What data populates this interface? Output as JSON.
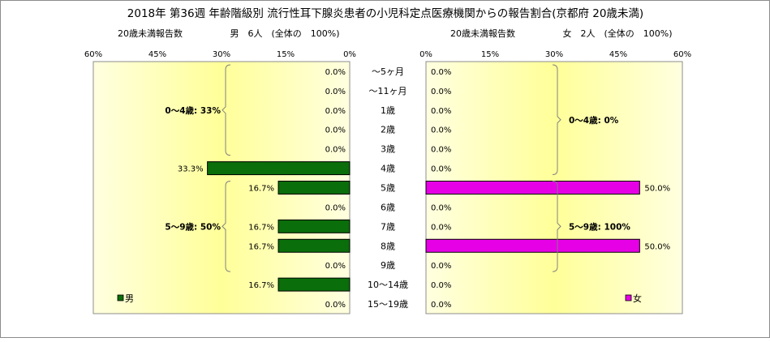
{
  "title": "2018年 第36週 年齢階級別 流行性耳下腺炎患者の小児科定点医療機関からの報告割合(京都府 20歳未満)",
  "colors": {
    "male_bar": "#0a6e0a",
    "female_bar": "#e600e6",
    "plot_gradient_edge": "#ffffe0",
    "plot_gradient_center": "#ffff99"
  },
  "chart_data": [
    {
      "type": "bar",
      "orientation": "horizontal",
      "direction": "right-to-left",
      "header_left": "20歳未満報告数",
      "header_right": "男　6人　(全体の　100%)",
      "categories": [
        "～5ヶ月",
        "～11ヶ月",
        "1歳",
        "2歳",
        "3歳",
        "4歳",
        "5歳",
        "6歳",
        "7歳",
        "8歳",
        "9歳",
        "10～14歳",
        "15～19歳"
      ],
      "values": [
        0.0,
        0.0,
        0.0,
        0.0,
        0.0,
        33.3,
        16.7,
        0.0,
        16.7,
        16.7,
        0.0,
        16.7,
        0.0
      ],
      "value_labels": [
        "0.0%",
        "0.0%",
        "0.0%",
        "0.0%",
        "0.0%",
        "33.3%",
        "16.7%",
        "0.0%",
        "16.7%",
        "16.7%",
        "0.0%",
        "16.7%",
        "0.0%"
      ],
      "xlim": [
        0,
        60
      ],
      "ticks": [
        "60%",
        "45%",
        "30%",
        "15%",
        "0%"
      ],
      "legend": "男",
      "legend_position": "bottom-left",
      "annotations": [
        {
          "text": "0～4歳: 33%",
          "from_category": 0,
          "to_category": 4
        },
        {
          "text": "5～9歳: 50%",
          "from_category": 6,
          "to_category": 10
        }
      ]
    },
    {
      "type": "bar",
      "orientation": "horizontal",
      "direction": "left-to-right",
      "header_left": "20歳未満報告数",
      "header_right": "女　2人　(全体の　100%)",
      "categories": [
        "～5ヶ月",
        "～11ヶ月",
        "1歳",
        "2歳",
        "3歳",
        "4歳",
        "5歳",
        "6歳",
        "7歳",
        "8歳",
        "9歳",
        "10～14歳",
        "15～19歳"
      ],
      "values": [
        0.0,
        0.0,
        0.0,
        0.0,
        0.0,
        0.0,
        50.0,
        0.0,
        0.0,
        50.0,
        0.0,
        0.0,
        0.0
      ],
      "value_labels": [
        "0.0%",
        "0.0%",
        "0.0%",
        "0.0%",
        "0.0%",
        "0.0%",
        "50.0%",
        "0.0%",
        "0.0%",
        "50.0%",
        "0.0%",
        "0.0%",
        "0.0%"
      ],
      "xlim": [
        0,
        60
      ],
      "ticks": [
        "0%",
        "15%",
        "30%",
        "45%",
        "60%"
      ],
      "legend": "女",
      "legend_position": "bottom-right",
      "annotations": [
        {
          "text": "0～4歳: 0%",
          "from_category": 0,
          "to_category": 5
        },
        {
          "text": "5～9歳: 100%",
          "from_category": 6,
          "to_category": 10
        }
      ]
    }
  ]
}
